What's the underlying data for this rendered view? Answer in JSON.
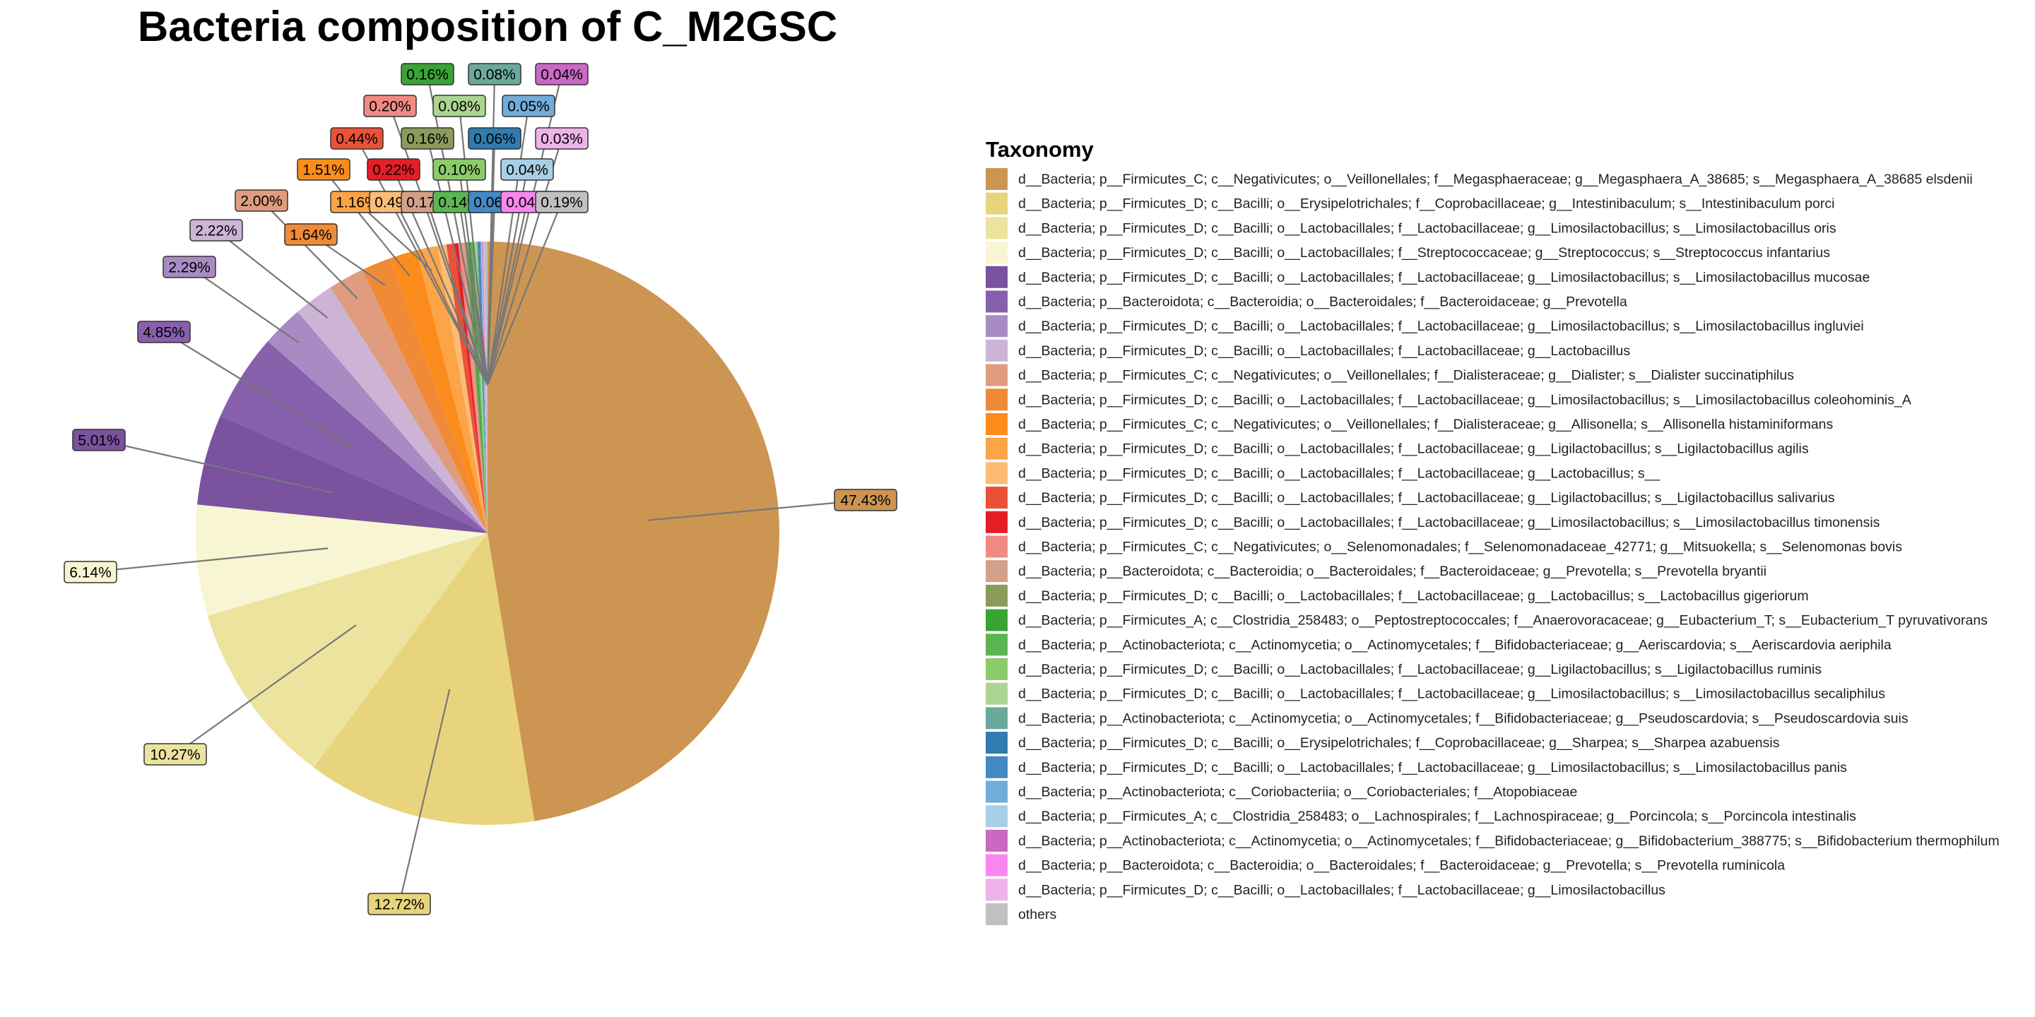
{
  "chart_data": {
    "type": "pie",
    "title": "Bacteria composition of C_M2GSC",
    "legend_title": "Taxonomy",
    "legend_position": "right",
    "slices": [
      {
        "taxon": "d__Bacteria; p__Firmicutes_C; c__Negativicutes; o__Veillonellales; f__Megasphaeraceae; g__Megasphaera_A_38685; s__Megasphaera_A_38685 elsdenii",
        "value": 47.43,
        "label": "47.43%",
        "color": "#CD9552"
      },
      {
        "taxon": "d__Bacteria; p__Firmicutes_D; c__Bacilli; o__Erysipelotrichales; f__Coprobacillaceae; g__Intestinibaculum; s__Intestinibaculum porci",
        "value": 12.72,
        "label": "12.72%",
        "color": "#E8D47C"
      },
      {
        "taxon": "d__Bacteria; p__Firmicutes_D; c__Bacilli; o__Lactobacillales; f__Lactobacillaceae; g__Limosilactobacillus; s__Limosilactobacillus oris",
        "value": 10.27,
        "label": "10.27%",
        "color": "#EBE39E"
      },
      {
        "taxon": "d__Bacteria; p__Firmicutes_D; c__Bacilli; o__Lactobacillales; f__Streptococcaceae; g__Streptococcus; s__Streptococcus infantarius",
        "value": 6.14,
        "label": "6.14%",
        "color": "#F8F5D2"
      },
      {
        "taxon": "d__Bacteria; p__Firmicutes_D; c__Bacilli; o__Lactobacillales; f__Lactobacillaceae; g__Limosilactobacillus; s__Limosilactobacillus mucosae",
        "value": 5.01,
        "label": "5.01%",
        "color": "#7A529D"
      },
      {
        "taxon": "d__Bacteria; p__Bacteroidota; c__Bacteroidia; o__Bacteroidales; f__Bacteroidaceae; g__Prevotella",
        "value": 4.85,
        "label": "4.85%",
        "color": "#8760AC"
      },
      {
        "taxon": "d__Bacteria; p__Firmicutes_D; c__Bacilli; o__Lactobacillales; f__Lactobacillaceae; g__Limosilactobacillus; s__Limosilactobacillus ingluviei",
        "value": 2.29,
        "label": "2.29%",
        "color": "#A98BC4"
      },
      {
        "taxon": "d__Bacteria; p__Firmicutes_D; c__Bacilli; o__Lactobacillales; f__Lactobacillaceae; g__Lactobacillus",
        "value": 2.22,
        "label": "2.22%",
        "color": "#CDB4D6"
      },
      {
        "taxon": "d__Bacteria; p__Firmicutes_C; c__Negativicutes; o__Veillonellales; f__Dialisteraceae; g__Dialister; s__Dialister succinatiphilus",
        "value": 2.0,
        "label": "2.00%",
        "color": "#DF9C7F"
      },
      {
        "taxon": "d__Bacteria; p__Firmicutes_D; c__Bacilli; o__Lactobacillales; f__Lactobacillaceae; g__Limosilactobacillus; s__Limosilactobacillus coleohominis_A",
        "value": 1.64,
        "label": "1.64%",
        "color": "#F08A37"
      },
      {
        "taxon": "d__Bacteria; p__Firmicutes_C; c__Negativicutes; o__Veillonellales; f__Dialisteraceae; g__Allisonella; s__Allisonella histaminiformans",
        "value": 1.51,
        "label": "1.51%",
        "color": "#FC8D1C"
      },
      {
        "taxon": "d__Bacteria; p__Firmicutes_D; c__Bacilli; o__Lactobacillales; f__Lactobacillaceae; g__Ligilactobacillus; s__Ligilactobacillus agilis",
        "value": 1.16,
        "label": "1.16%",
        "color": "#FCA448"
      },
      {
        "taxon": "d__Bacteria; p__Firmicutes_D; c__Bacilli; o__Lactobacillales; f__Lactobacillaceae; g__Lactobacillus; s__",
        "value": 0.49,
        "label": "0.49%",
        "color": "#FCBC76"
      },
      {
        "taxon": "d__Bacteria; p__Firmicutes_D; c__Bacilli; o__Lactobacillales; f__Lactobacillaceae; g__Ligilactobacillus; s__Ligilactobacillus salivarius",
        "value": 0.44,
        "label": "0.44%",
        "color": "#EB5137"
      },
      {
        "taxon": "d__Bacteria; p__Firmicutes_D; c__Bacilli; o__Lactobacillales; f__Lactobacillaceae; g__Limosilactobacillus; s__Limosilactobacillus timonensis",
        "value": 0.22,
        "label": "0.22%",
        "color": "#E31F25"
      },
      {
        "taxon": "d__Bacteria; p__Firmicutes_C; c__Negativicutes; o__Selenomonadales; f__Selenomonadaceae_42771; g__Mitsuokella; s__Selenomonas bovis",
        "value": 0.2,
        "label": "0.20%",
        "color": "#F08A83"
      },
      {
        "taxon": "d__Bacteria; p__Bacteroidota; c__Bacteroidia; o__Bacteroidales; f__Bacteroidaceae; g__Prevotella; s__Prevotella bryantii",
        "value": 0.17,
        "label": "0.17%",
        "color": "#D4A08A"
      },
      {
        "taxon": "d__Bacteria; p__Firmicutes_D; c__Bacilli; o__Lactobacillales; f__Lactobacillaceae; g__Lactobacillus; s__Lactobacillus gigeriorum",
        "value": 0.16,
        "label": "0.16%",
        "color": "#8A9B5B"
      },
      {
        "taxon": "d__Bacteria; p__Firmicutes_A; c__Clostridia_258483; o__Peptostreptococcales; f__Anaerovoracaceae; g__Eubacterium_T; s__Eubacterium_T pyruvativorans",
        "value": 0.16,
        "label": "0.16%",
        "color": "#3AA335"
      },
      {
        "taxon": "d__Bacteria; p__Actinobacteriota; c__Actinomycetia; o__Actinomycetales; f__Bifidobacteriaceae; g__Aeriscardovia; s__Aeriscardovia aeriphila",
        "value": 0.14,
        "label": "0.14%",
        "color": "#5BB652"
      },
      {
        "taxon": "d__Bacteria; p__Firmicutes_D; c__Bacilli; o__Lactobacillales; f__Lactobacillaceae; g__Ligilactobacillus; s__Ligilactobacillus ruminis",
        "value": 0.1,
        "label": "0.10%",
        "color": "#8BCB6A"
      },
      {
        "taxon": "d__Bacteria; p__Firmicutes_D; c__Bacilli; o__Lactobacillales; f__Lactobacillaceae; g__Limosilactobacillus; s__Limosilactobacillus secaliphilus",
        "value": 0.08,
        "label": "0.08%",
        "color": "#ACD591"
      },
      {
        "taxon": "d__Bacteria; p__Actinobacteriota; c__Actinomycetia; o__Actinomycetales; f__Bifidobacteriaceae; g__Pseudoscardovia; s__Pseudoscardovia suis",
        "value": 0.08,
        "label": "0.08%",
        "color": "#6AAA9C"
      },
      {
        "taxon": "d__Bacteria; p__Firmicutes_D; c__Bacilli; o__Erysipelotrichales; f__Coprobacillaceae; g__Sharpea; s__Sharpea azabuensis",
        "value": 0.06,
        "label": "0.06%",
        "color": "#2E7CB0"
      },
      {
        "taxon": "d__Bacteria; p__Firmicutes_D; c__Bacilli; o__Lactobacillales; f__Lactobacillaceae; g__Limosilactobacillus; s__Limosilactobacillus panis",
        "value": 0.06,
        "label": "0.06%",
        "color": "#4389C4"
      },
      {
        "taxon": "d__Bacteria; p__Actinobacteriota; c__Coriobacteriia; o__Coriobacteriales; f__Atopobiaceae",
        "value": 0.05,
        "label": "0.05%",
        "color": "#72ACD8"
      },
      {
        "taxon": "d__Bacteria; p__Firmicutes_A; c__Clostridia_258483; o__Lachnospirales; f__Lachnospiraceae; g__Porcincola; s__Porcincola intestinalis",
        "value": 0.04,
        "label": "0.04%",
        "color": "#A8CFE5"
      },
      {
        "taxon": "d__Bacteria; p__Actinobacteriota; c__Actinomycetia; o__Actinomycetales; f__Bifidobacteriaceae; g__Bifidobacterium_388775; s__Bifidobacterium thermophilum",
        "value": 0.04,
        "label": "0.04%",
        "color": "#CB67C4"
      },
      {
        "taxon": "d__Bacteria; p__Bacteroidota; c__Bacteroidia; o__Bacteroidales; f__Bacteroidaceae; g__Prevotella; s__Prevotella ruminicola",
        "value": 0.04,
        "label": "0.04%",
        "color": "#F987F0"
      },
      {
        "taxon": "d__Bacteria; p__Firmicutes_D; c__Bacilli; o__Lactobacillales; f__Lactobacillaceae; g__Limosilactobacillus",
        "value": 0.03,
        "label": "0.03%",
        "color": "#EFB2E9"
      },
      {
        "taxon": "others",
        "value": 0.19,
        "label": "0.19%",
        "color": "#C0C0C0"
      }
    ]
  }
}
